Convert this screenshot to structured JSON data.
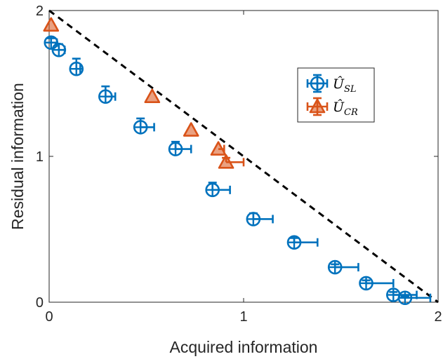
{
  "chart_data": {
    "type": "scatter",
    "xlabel": "Acquired information",
    "ylabel": "Residual information",
    "xlim": [
      0,
      2
    ],
    "ylim": [
      0,
      2
    ],
    "xticks": [
      "0",
      "1",
      "2"
    ],
    "yticks": [
      "0",
      "1",
      "2"
    ],
    "grid": false,
    "legend_position": "upper-right",
    "reference_line": {
      "style": "dashed",
      "color": "#000000",
      "x": [
        0,
        2
      ],
      "y": [
        2,
        0
      ]
    },
    "series": [
      {
        "name": "U_SL",
        "legend_base": "Û",
        "legend_sub": "SL",
        "marker": "circle-plus",
        "color": "#0072BD",
        "points": [
          {
            "x": 0.01,
            "y": 1.78,
            "xerr": 0.03,
            "yerr": 0.03
          },
          {
            "x": 0.05,
            "y": 1.73,
            "xerr": 0.03,
            "yerr": 0.04
          },
          {
            "x": 0.14,
            "y": 1.6,
            "xerr": 0.02,
            "yerr": 0.07
          },
          {
            "x": 0.29,
            "y": 1.41,
            "xerr": 0.05,
            "yerr": 0.07
          },
          {
            "x": 0.47,
            "y": 1.2,
            "xerr": 0.07,
            "yerr": 0.06
          },
          {
            "x": 0.65,
            "y": 1.05,
            "xerr": 0.08,
            "yerr": 0.05
          },
          {
            "x": 0.84,
            "y": 0.77,
            "xerr": 0.09,
            "yerr": 0.05
          },
          {
            "x": 1.05,
            "y": 0.57,
            "xerr": 0.1,
            "yerr": 0.04
          },
          {
            "x": 1.26,
            "y": 0.41,
            "xerr": 0.12,
            "yerr": 0.03
          },
          {
            "x": 1.47,
            "y": 0.24,
            "xerr": 0.12,
            "yerr": 0.02
          },
          {
            "x": 1.63,
            "y": 0.13,
            "xerr": 0.14,
            "yerr": 0.02
          },
          {
            "x": 1.77,
            "y": 0.05,
            "xerr": 0.12,
            "yerr": 0.02
          },
          {
            "x": 1.83,
            "y": 0.03,
            "xerr": 0.13,
            "yerr": 0.01
          }
        ]
      },
      {
        "name": "U_CR",
        "legend_base": "Û",
        "legend_sub": "CR",
        "marker": "triangle",
        "color": "#D95319",
        "points": [
          {
            "x": 0.01,
            "y": 1.9,
            "xerr": 0.0,
            "yerr": 0.0
          },
          {
            "x": 0.53,
            "y": 1.41,
            "xerr": 0.0,
            "yerr": 0.0
          },
          {
            "x": 0.73,
            "y": 1.18,
            "xerr": 0.0,
            "yerr": 0.0
          },
          {
            "x": 0.87,
            "y": 1.05,
            "xerr": 0.03,
            "yerr": 0.0
          },
          {
            "x": 0.91,
            "y": 0.96,
            "xerr": 0.09,
            "yerr": 0.03
          }
        ]
      }
    ]
  }
}
